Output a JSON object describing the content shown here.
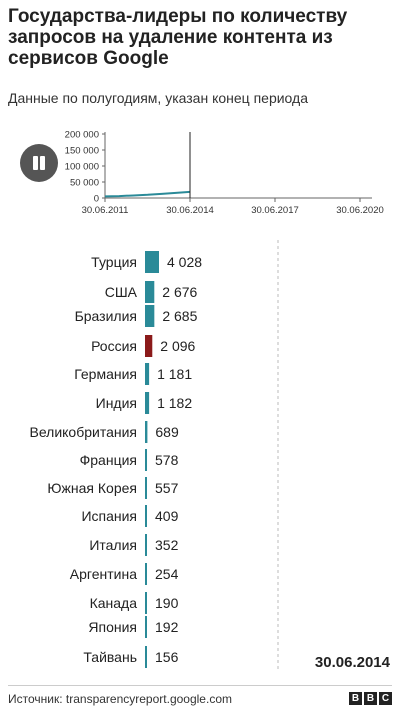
{
  "header": {
    "title": "Государства-лидеры по количеству запросов на удаление контента из сервисов Google",
    "subtitle": "Данные по полугодиям, указан конец периода"
  },
  "controls": {
    "pause_icon": "pause-icon"
  },
  "timeline_chart": {
    "type": "line",
    "x_ticks": [
      "30.06.2011",
      "30.06.2014",
      "30.06.2017",
      "30.06.2020"
    ],
    "y_ticks": [
      "200 000",
      "150 000",
      "100 000",
      "50 000",
      "0"
    ],
    "ylim": [
      0,
      200000
    ],
    "x": [
      "30.06.2011",
      "31.12.2011",
      "30.06.2012",
      "31.12.2012",
      "30.06.2013",
      "31.12.2013",
      "30.06.2014"
    ],
    "values": [
      5000,
      6000,
      8000,
      10000,
      13000,
      16000,
      19000
    ],
    "current": "30.06.2014",
    "color": "#2a8a98"
  },
  "chart_data": {
    "type": "bar",
    "orientation": "horizontal",
    "categories": [
      "Турция",
      "США",
      "Бразилия",
      "Россия",
      "Германия",
      "Индия",
      "Великобритания",
      "Франция",
      "Южная Корея",
      "Испания",
      "Италия",
      "Аргентина",
      "Канада",
      "Япония",
      "Тайвань"
    ],
    "values": [
      4028,
      2676,
      2685,
      2096,
      1181,
      1182,
      689,
      578,
      557,
      409,
      352,
      254,
      190,
      192,
      156
    ],
    "value_labels": [
      "4 028",
      "2 676",
      "2 685",
      "2 096",
      "1 181",
      "1 182",
      "689",
      "578",
      "557",
      "409",
      "352",
      "254",
      "190",
      "192",
      "156"
    ],
    "highlight": "Россия",
    "colors": {
      "default": "#2a8a98",
      "highlight": "#8b1a1a"
    },
    "date_label": "30.06.2014"
  },
  "footer": {
    "source": "Источник: transparencyreport.google.com",
    "logo_letters": [
      "B",
      "B",
      "C"
    ]
  }
}
